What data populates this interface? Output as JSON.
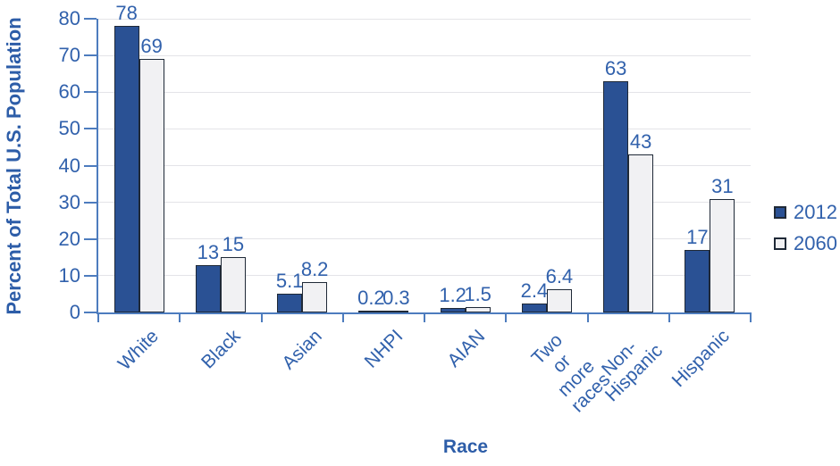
{
  "colors": {
    "series_2012": "#2A5194",
    "series_2060": "#F1F1F3",
    "bar_border": "#1F2937",
    "axis": "#4D7CBE",
    "grid": "#E4E4E8",
    "label_text": "#3161AC",
    "title_text": "#2D5DA8",
    "background": "#FFFFFF"
  },
  "chart_data": {
    "type": "bar",
    "title": "",
    "xlabel": "Race",
    "ylabel": "Percent of Total U.S. Population",
    "categories": [
      "White",
      "Black",
      "Asian",
      "NHPI",
      "AIAN",
      "Two or\nmore races",
      "Non-Hispanic",
      "Hispanic"
    ],
    "series": [
      {
        "name": "2012",
        "color": "#2A5194",
        "values": [
          78,
          13,
          5.1,
          0.2,
          1.2,
          2.4,
          63,
          17
        ]
      },
      {
        "name": "2060",
        "color": "#F1F1F3",
        "values": [
          69,
          15,
          8.2,
          0.3,
          1.5,
          6.4,
          43,
          31
        ]
      }
    ],
    "ylim": [
      0,
      80
    ],
    "ytick_step": 10,
    "grid": true,
    "bar_value_labels": true,
    "legend_position": "right"
  }
}
